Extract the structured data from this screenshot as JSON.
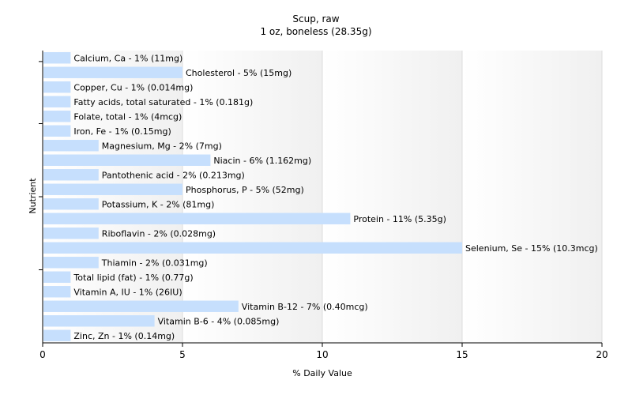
{
  "chart_data": {
    "type": "bar",
    "orientation": "horizontal",
    "title": "Scup, raw",
    "subtitle": "1 oz, boneless (28.35g)",
    "xlabel": "% Daily Value",
    "ylabel": "Nutrient",
    "xlim": [
      0,
      20
    ],
    "xticks": [
      0,
      5,
      10,
      15,
      20
    ],
    "grid": true,
    "colors": {
      "bar": "#c6dffd",
      "plot_band_light": "#ffffff",
      "plot_band_dark": "#f0f0f0",
      "gridline": "#dcdcdc",
      "axis": "#000000"
    },
    "categories": [
      "Calcium, Ca",
      "Cholesterol",
      "Copper, Cu",
      "Fatty acids, total saturated",
      "Folate, total",
      "Iron, Fe",
      "Magnesium, Mg",
      "Niacin",
      "Pantothenic acid",
      "Phosphorus, P",
      "Potassium, K",
      "Protein",
      "Riboflavin",
      "Selenium, Se",
      "Thiamin",
      "Total lipid (fat)",
      "Vitamin A, IU",
      "Vitamin B-12",
      "Vitamin B-6",
      "Zinc, Zn"
    ],
    "values": [
      1,
      5,
      1,
      1,
      1,
      1,
      2,
      6,
      2,
      5,
      2,
      11,
      2,
      15,
      2,
      1,
      1,
      7,
      4,
      1
    ],
    "labels": [
      "Calcium, Ca - 1% (11mg)",
      "Cholesterol - 5% (15mg)",
      "Copper, Cu - 1% (0.014mg)",
      "Fatty acids, total saturated - 1% (0.181g)",
      "Folate, total - 1% (4mcg)",
      "Iron, Fe - 1% (0.15mg)",
      "Magnesium, Mg - 2% (7mg)",
      "Niacin - 6% (1.162mg)",
      "Pantothenic acid - 2% (0.213mg)",
      "Phosphorus, P - 5% (52mg)",
      "Potassium, K - 2% (81mg)",
      "Protein - 11% (5.35g)",
      "Riboflavin - 2% (0.028mg)",
      "Selenium, Se - 15% (10.3mcg)",
      "Thiamin - 2% (0.031mg)",
      "Total lipid (fat) - 1% (0.77g)",
      "Vitamin A, IU - 1% (26IU)",
      "Vitamin B-12 - 7% (0.40mcg)",
      "Vitamin B-6 - 4% (0.085mg)",
      "Zinc, Zn - 1% (0.14mg)"
    ]
  }
}
